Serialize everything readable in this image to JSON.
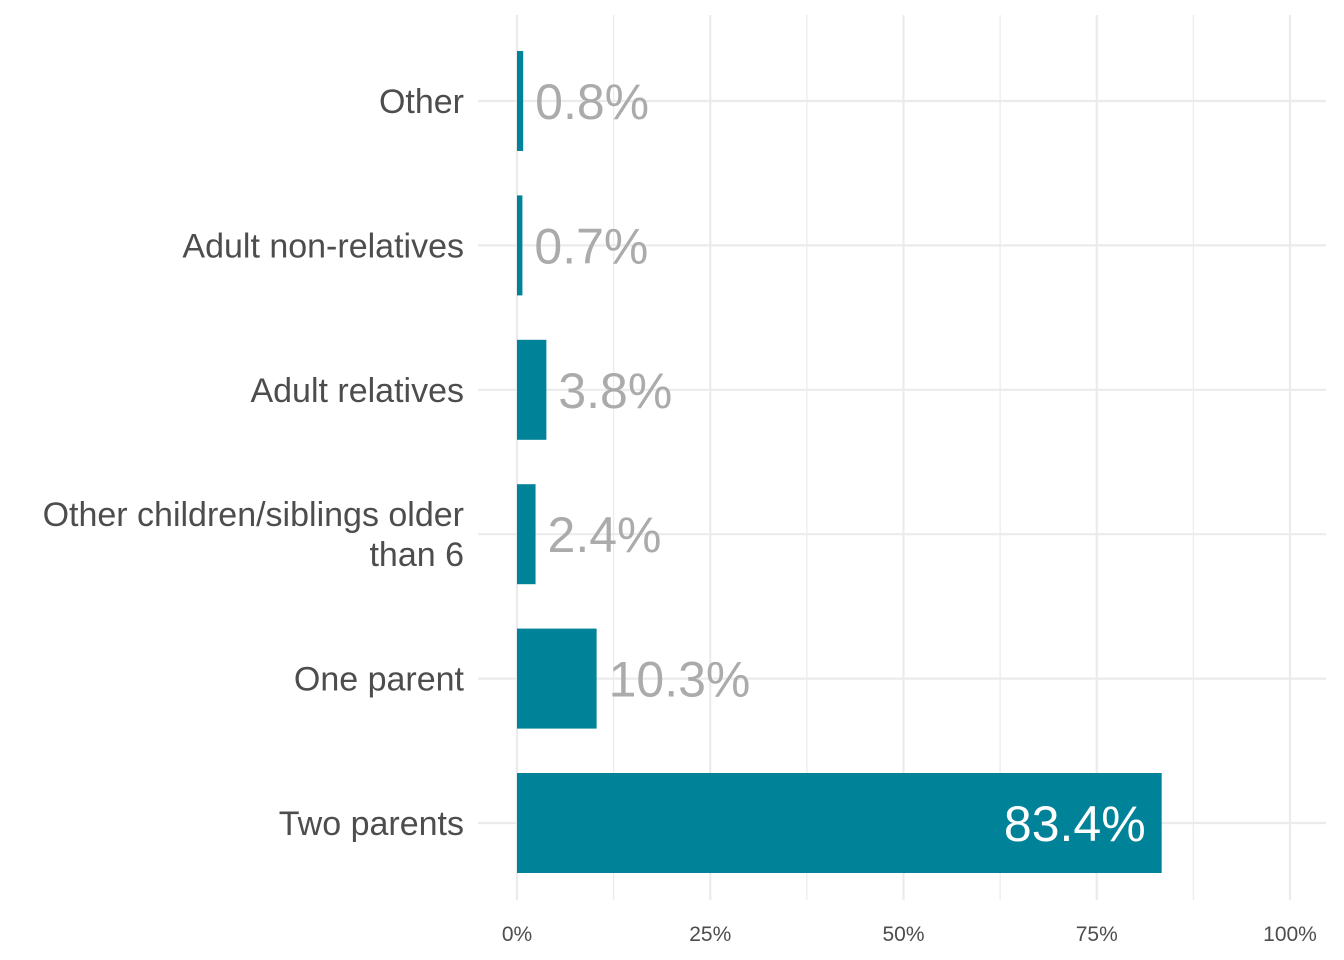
{
  "chart_data": {
    "type": "bar",
    "orientation": "horizontal",
    "categories": [
      "Other",
      "Adult non-relatives",
      "Adult relatives",
      "Other children/siblings older than 6",
      "One parent",
      "Two parents"
    ],
    "category_lines": [
      [
        "Other"
      ],
      [
        "Adult non-relatives"
      ],
      [
        "Adult relatives"
      ],
      [
        "Other children/siblings older",
        "than 6"
      ],
      [
        "One parent"
      ],
      [
        "Two parents"
      ]
    ],
    "values": [
      0.8,
      0.7,
      3.8,
      2.4,
      10.3,
      83.4
    ],
    "value_labels": [
      "0.8%",
      "0.7%",
      "3.8%",
      "2.4%",
      "10.3%",
      "83.4%"
    ],
    "xlim": [
      0,
      100
    ],
    "x_ticks": [
      0,
      25,
      50,
      75,
      100
    ],
    "x_tick_labels": [
      "0%",
      "25%",
      "50%",
      "75%",
      "100%"
    ],
    "title": "",
    "xlabel": "",
    "ylabel": "",
    "grid": true,
    "legend": "none",
    "colors": {
      "bar": "#008299",
      "label_outside": "#ababab",
      "label_inside": "#ffffff",
      "grid": "#ebebeb",
      "axis_text": "#4d4d4d"
    }
  }
}
